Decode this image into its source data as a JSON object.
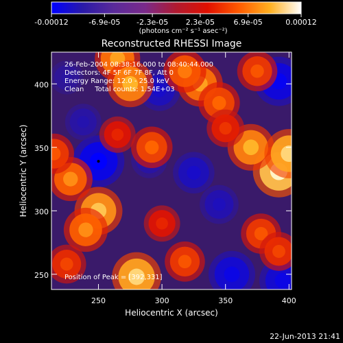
{
  "chart_data": {
    "type": "heatmap",
    "title": "Reconstructed RHESSI Image",
    "xlabel": "Heliocentric X (arcsec)",
    "ylabel": "Heliocentric Y (arcsec)",
    "xlim": [
      213,
      402
    ],
    "ylim": [
      238,
      425
    ],
    "x_ticks": [
      250,
      300,
      350,
      400
    ],
    "y_ticks": [
      250,
      300,
      350,
      400
    ],
    "colorbar": {
      "label": "(photons cm⁻² s⁻¹ asec⁻²)",
      "range": [
        -0.00012,
        0.00012
      ],
      "tick_labels": [
        "-0.00012",
        "-6.9e-05",
        "-2.3e-05",
        "2.3e-05",
        "6.9e-05",
        "0.00012"
      ],
      "colors": [
        "#0000ff",
        "#2a1aa8",
        "#5a2a9a",
        "#7a2a8a",
        "#b01a30",
        "#e01000",
        "#ff5a00",
        "#ffb020",
        "#ffffff"
      ]
    },
    "annotations": [
      "26-Feb-2004 08:38:16.000 to 08:40:44.000",
      "Detectors: 4F 5F 6F 7F 8F, Att 0",
      "Energy Range: 12.0 - 25.0 keV",
      "Clean     Total counts: 1.54E+03"
    ],
    "peak_text": "Position of Peak = [392,331]",
    "peak": {
      "x": 392,
      "y": 331
    },
    "marker": {
      "x": 250,
      "y": 339
    },
    "blobs": [
      {
        "x": 250,
        "y": 339,
        "v": -1.0
      },
      {
        "x": 392,
        "y": 402,
        "v": -0.9
      },
      {
        "x": 355,
        "y": 250,
        "v": -0.8
      },
      {
        "x": 395,
        "y": 245,
        "v": -0.8
      },
      {
        "x": 298,
        "y": 395,
        "v": -0.6
      },
      {
        "x": 325,
        "y": 330,
        "v": -0.6
      },
      {
        "x": 345,
        "y": 305,
        "v": -0.5
      },
      {
        "x": 225,
        "y": 405,
        "v": -0.3
      },
      {
        "x": 238,
        "y": 370,
        "v": -0.4
      },
      {
        "x": 290,
        "y": 340,
        "v": -0.4
      },
      {
        "x": 392,
        "y": 331,
        "v": 1.0
      },
      {
        "x": 370,
        "y": 350,
        "v": 0.8
      },
      {
        "x": 400,
        "y": 345,
        "v": 0.9
      },
      {
        "x": 250,
        "y": 300,
        "v": 0.85
      },
      {
        "x": 240,
        "y": 285,
        "v": 0.7
      },
      {
        "x": 265,
        "y": 420,
        "v": 0.75
      },
      {
        "x": 275,
        "y": 400,
        "v": 0.8
      },
      {
        "x": 330,
        "y": 400,
        "v": 0.75
      },
      {
        "x": 345,
        "y": 385,
        "v": 0.6
      },
      {
        "x": 375,
        "y": 410,
        "v": 0.55
      },
      {
        "x": 292,
        "y": 350,
        "v": 0.6
      },
      {
        "x": 280,
        "y": 248,
        "v": 0.9
      },
      {
        "x": 318,
        "y": 260,
        "v": 0.55
      },
      {
        "x": 228,
        "y": 325,
        "v": 0.7
      },
      {
        "x": 225,
        "y": 258,
        "v": 0.5
      },
      {
        "x": 378,
        "y": 282,
        "v": 0.55
      },
      {
        "x": 392,
        "y": 268,
        "v": 0.5
      },
      {
        "x": 215,
        "y": 345,
        "v": 0.55
      },
      {
        "x": 265,
        "y": 360,
        "v": 0.4
      },
      {
        "x": 350,
        "y": 365,
        "v": 0.45
      },
      {
        "x": 300,
        "y": 290,
        "v": 0.4
      },
      {
        "x": 318,
        "y": 410,
        "v": 0.65
      }
    ]
  },
  "footer": {
    "timestamp": "22-Jun-2013 21:41"
  }
}
